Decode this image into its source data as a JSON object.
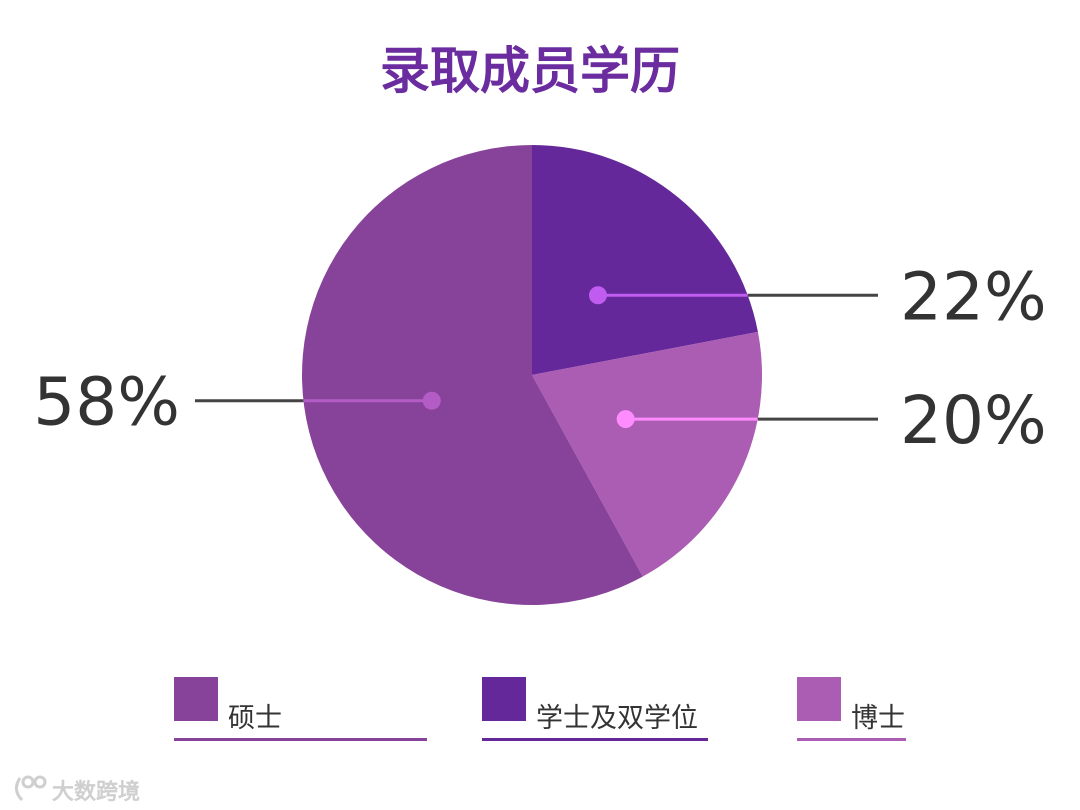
{
  "chart_data": {
    "type": "pie",
    "title": "录取成员学历",
    "title_color": "#6a2c9e",
    "slices": [
      {
        "name": "学士及双学位",
        "value": 22,
        "label": "22%",
        "color": "#64289a",
        "dot_color": "#c05cf0"
      },
      {
        "name": "博士",
        "value": 20,
        "label": "20%",
        "color": "#ab5cb3",
        "dot_color": "#ff8cff"
      },
      {
        "name": "硕士",
        "value": 58,
        "label": "58%",
        "color": "#874399",
        "dot_color": "#b35cc6"
      }
    ],
    "legend": [
      {
        "label": "硕士",
        "color": "#874399"
      },
      {
        "label": "学士及双学位",
        "color": "#64289a"
      },
      {
        "label": "博士",
        "color": "#ab5cb3"
      }
    ],
    "legend_position": "bottom",
    "label_line_color": "#444444"
  },
  "watermark": {
    "text": "大数跨境"
  }
}
